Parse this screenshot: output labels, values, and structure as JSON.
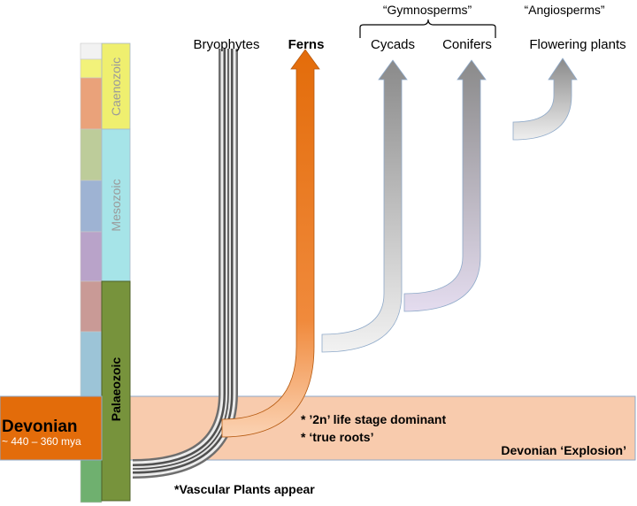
{
  "groups": {
    "gymnosperms": "“Gymnosperms”",
    "angiosperms": "“Angiosperms”"
  },
  "lineages": {
    "bryophytes": "Bryophytes",
    "ferns": "Ferns",
    "cycads": "Cycads",
    "conifers": "Conifers",
    "flowering": "Flowering plants"
  },
  "eras": {
    "caenozoic": "Caenozoic",
    "mesozoic": "Mesozoic",
    "palaeozoic": "Palaeozoic"
  },
  "devonian": {
    "title": "Devonian",
    "range": "~ 440 – 360 mya",
    "note1": "* ’2n’ life stage dominant",
    "note2": "* ‘true roots’",
    "explosion": "Devonian ‘Explosion’"
  },
  "vascular_note": "*Vascular Plants appear",
  "colors": {
    "fern_orange": "#E36C0A",
    "band_peach": "#F8CBAD",
    "devonian_box": "#E36C0A",
    "palaeozoic": "#77933C",
    "mesozoic": "#A6E4E8",
    "caenozoic": "#EFEF6F"
  }
}
